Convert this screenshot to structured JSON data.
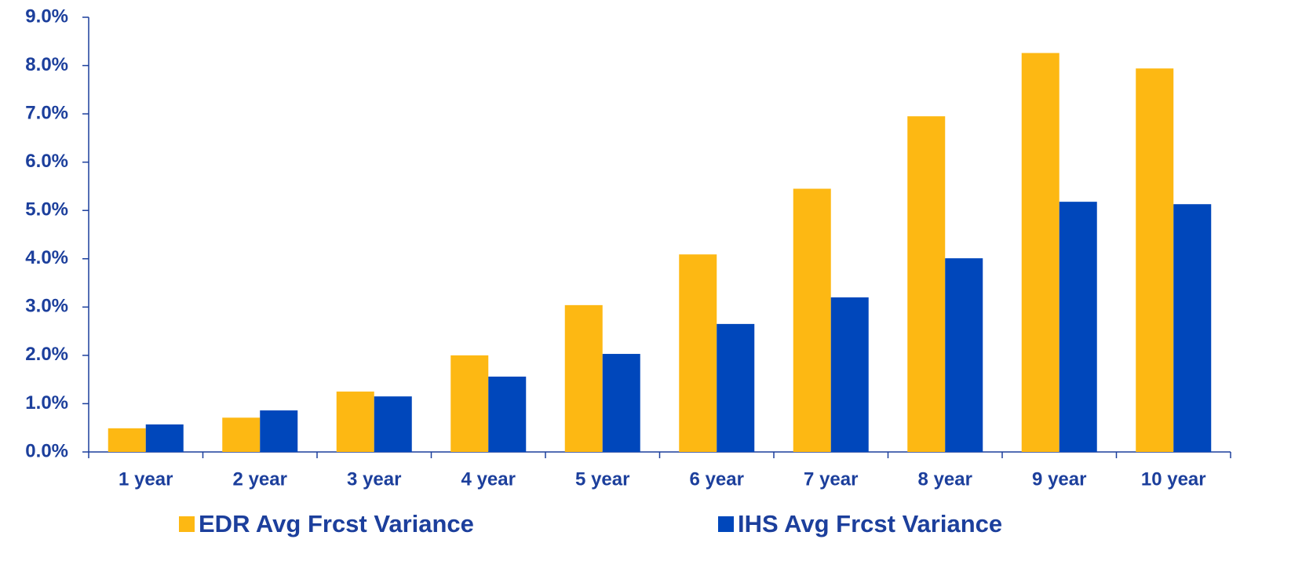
{
  "chart_data": {
    "type": "bar",
    "categories": [
      "1 year",
      "2 year",
      "3 year",
      "4 year",
      "5 year",
      "6 year",
      "7 year",
      "8 year",
      "9 year",
      "10 year"
    ],
    "series": [
      {
        "name": "EDR Avg Frcst Variance",
        "color": "#fdb813",
        "values": [
          0.49,
          0.71,
          1.25,
          2.0,
          3.04,
          4.09,
          5.45,
          6.95,
          8.26,
          7.94
        ]
      },
      {
        "name": "IHS Avg Frcst Variance",
        "color": "#0047bb",
        "values": [
          0.57,
          0.86,
          1.15,
          1.56,
          2.03,
          2.65,
          3.2,
          4.01,
          5.18,
          5.13
        ]
      }
    ],
    "ylim": [
      0,
      9
    ],
    "yticks": [
      {
        "value": 0,
        "label": "0.0%"
      },
      {
        "value": 1,
        "label": "1.0%"
      },
      {
        "value": 2,
        "label": "2.0%"
      },
      {
        "value": 3,
        "label": "3.0%"
      },
      {
        "value": 4,
        "label": "4.0%"
      },
      {
        "value": 5,
        "label": "5.0%"
      },
      {
        "value": 6,
        "label": "6.0%"
      },
      {
        "value": 7,
        "label": "7.0%"
      },
      {
        "value": 8,
        "label": "8.0%"
      },
      {
        "value": 9,
        "label": "9.0%"
      }
    ],
    "grid": false,
    "legend": "bottom"
  }
}
